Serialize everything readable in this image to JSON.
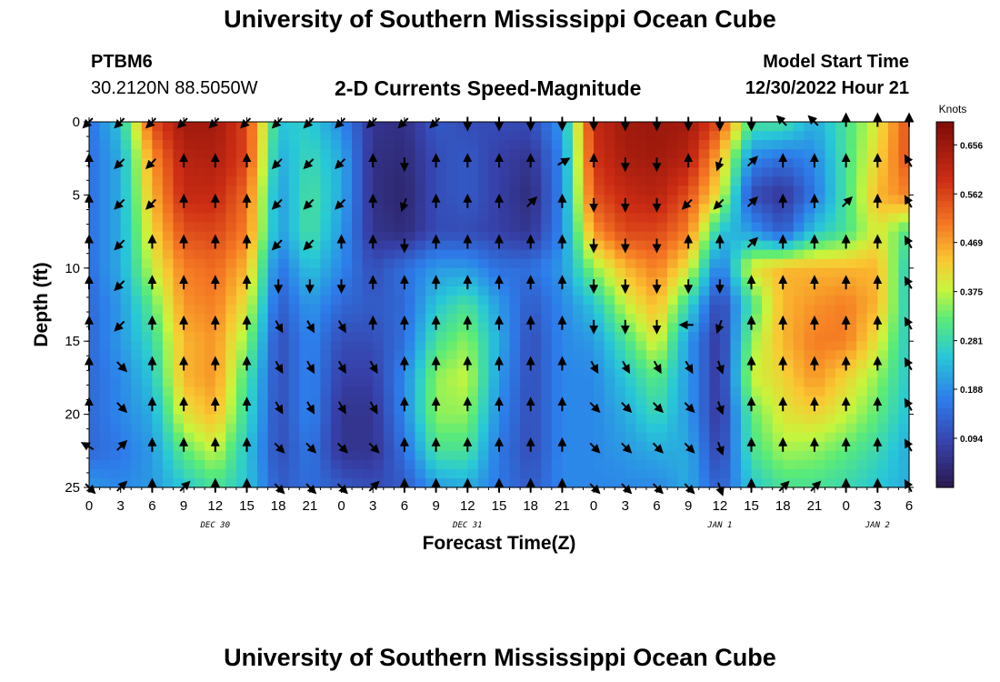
{
  "page": {
    "title": "University of Southern Mississippi Ocean Cube",
    "footer_title": "University of Southern Mississippi Ocean Cube",
    "station_id": "PTBM6",
    "coordinates": "30.2120N  88.5050W",
    "model_start_label": "Model Start Time",
    "model_start_value": "12/30/2022 Hour 21"
  },
  "chart_data": {
    "type": "heatmap",
    "title": "2-D Currents Speed-Magnitude",
    "xlabel": "Forecast Time(Z)",
    "ylabel": "Depth (ft)",
    "x_tick_labels": [
      "0",
      "3",
      "6",
      "9",
      "12",
      "15",
      "18",
      "21",
      "0",
      "3",
      "6",
      "9",
      "12",
      "15",
      "18",
      "21",
      "0",
      "3",
      "6",
      "9",
      "12",
      "15",
      "18",
      "21",
      "0",
      "3",
      "6"
    ],
    "date_labels": [
      {
        "label": "DEC 30",
        "tick_index": 4
      },
      {
        "label": "DEC 31",
        "tick_index": 12
      },
      {
        "label": "JAN 1",
        "tick_index": 20
      },
      {
        "label": "JAN 2",
        "tick_index": 25
      }
    ],
    "y_ticks": [
      0,
      5,
      10,
      15,
      20,
      25
    ],
    "ylim": [
      25,
      0
    ],
    "x_range_hours": [
      0,
      78
    ],
    "colorbar": {
      "unit_label": "Knots",
      "ticks": [
        "0.656",
        "0.562",
        "0.469",
        "0.375",
        "0.281",
        "0.188",
        "0.094"
      ],
      "range": [
        0.0,
        0.7
      ]
    },
    "depth_rows": [
      0,
      2.5,
      5,
      7.5,
      10,
      12.5,
      15,
      17.5,
      20,
      22.5,
      25
    ],
    "column_hours": [
      0,
      3,
      6,
      9,
      12,
      15,
      18,
      21,
      24,
      27,
      30,
      33,
      36,
      39,
      42,
      45,
      48,
      51,
      54,
      57,
      60,
      63,
      66,
      69,
      72,
      75,
      78
    ],
    "speed_knots": [
      [
        0.15,
        0.25,
        0.55,
        0.65,
        0.65,
        0.56,
        0.25,
        0.26,
        0.18,
        0.06,
        0.05,
        0.12,
        0.1,
        0.1,
        0.1,
        0.2,
        0.6,
        0.65,
        0.66,
        0.65,
        0.55,
        0.3,
        0.3,
        0.22,
        0.3,
        0.4,
        0.55
      ],
      [
        0.15,
        0.22,
        0.48,
        0.62,
        0.63,
        0.56,
        0.22,
        0.28,
        0.22,
        0.05,
        0.04,
        0.1,
        0.12,
        0.08,
        0.06,
        0.18,
        0.58,
        0.64,
        0.65,
        0.62,
        0.45,
        0.18,
        0.15,
        0.18,
        0.3,
        0.42,
        0.55
      ],
      [
        0.15,
        0.22,
        0.45,
        0.6,
        0.6,
        0.52,
        0.2,
        0.3,
        0.22,
        0.05,
        0.03,
        0.1,
        0.12,
        0.08,
        0.04,
        0.18,
        0.55,
        0.6,
        0.62,
        0.55,
        0.4,
        0.1,
        0.06,
        0.16,
        0.3,
        0.45,
        0.5
      ],
      [
        0.15,
        0.22,
        0.42,
        0.55,
        0.56,
        0.5,
        0.2,
        0.3,
        0.2,
        0.06,
        0.04,
        0.1,
        0.1,
        0.08,
        0.06,
        0.18,
        0.48,
        0.56,
        0.56,
        0.5,
        0.25,
        0.2,
        0.12,
        0.25,
        0.3,
        0.4,
        0.3
      ],
      [
        0.15,
        0.22,
        0.38,
        0.5,
        0.52,
        0.45,
        0.15,
        0.25,
        0.18,
        0.1,
        0.15,
        0.2,
        0.2,
        0.15,
        0.15,
        0.2,
        0.35,
        0.45,
        0.5,
        0.4,
        0.15,
        0.4,
        0.45,
        0.45,
        0.45,
        0.45,
        0.25
      ],
      [
        0.14,
        0.2,
        0.32,
        0.48,
        0.5,
        0.4,
        0.12,
        0.2,
        0.14,
        0.12,
        0.14,
        0.25,
        0.3,
        0.2,
        0.12,
        0.18,
        0.25,
        0.38,
        0.45,
        0.28,
        0.08,
        0.3,
        0.45,
        0.48,
        0.5,
        0.45,
        0.25
      ],
      [
        0.14,
        0.2,
        0.28,
        0.45,
        0.48,
        0.35,
        0.1,
        0.18,
        0.1,
        0.1,
        0.15,
        0.3,
        0.35,
        0.22,
        0.1,
        0.18,
        0.2,
        0.3,
        0.4,
        0.2,
        0.06,
        0.35,
        0.45,
        0.5,
        0.5,
        0.4,
        0.25
      ],
      [
        0.14,
        0.18,
        0.25,
        0.45,
        0.48,
        0.3,
        0.1,
        0.18,
        0.08,
        0.08,
        0.18,
        0.35,
        0.38,
        0.2,
        0.1,
        0.18,
        0.18,
        0.25,
        0.32,
        0.2,
        0.06,
        0.38,
        0.42,
        0.48,
        0.42,
        0.35,
        0.25
      ],
      [
        0.14,
        0.18,
        0.22,
        0.4,
        0.45,
        0.28,
        0.1,
        0.18,
        0.06,
        0.06,
        0.18,
        0.35,
        0.35,
        0.18,
        0.1,
        0.18,
        0.18,
        0.22,
        0.28,
        0.2,
        0.06,
        0.32,
        0.4,
        0.42,
        0.38,
        0.32,
        0.24
      ],
      [
        0.14,
        0.16,
        0.2,
        0.32,
        0.38,
        0.25,
        0.1,
        0.16,
        0.06,
        0.06,
        0.15,
        0.3,
        0.3,
        0.16,
        0.1,
        0.18,
        0.18,
        0.2,
        0.22,
        0.22,
        0.08,
        0.3,
        0.36,
        0.35,
        0.32,
        0.28,
        0.22
      ],
      [
        0.2,
        0.18,
        0.2,
        0.25,
        0.3,
        0.25,
        0.12,
        0.15,
        0.12,
        0.1,
        0.12,
        0.2,
        0.22,
        0.16,
        0.12,
        0.18,
        0.18,
        0.18,
        0.18,
        0.22,
        0.12,
        0.25,
        0.3,
        0.3,
        0.28,
        0.25,
        0.22
      ]
    ],
    "current_direction_deg": [
      [
        225,
        225,
        225,
        225,
        225,
        225,
        225,
        225,
        225,
        225,
        225,
        225,
        180,
        180,
        180,
        180,
        180,
        180,
        180,
        180,
        180,
        180,
        315,
        315,
        0,
        0,
        0
      ],
      [
        0,
        225,
        225,
        0,
        0,
        0,
        225,
        225,
        225,
        0,
        180,
        0,
        0,
        0,
        0,
        60,
        0,
        180,
        180,
        0,
        200,
        45,
        0,
        0,
        0,
        0,
        330
      ],
      [
        0,
        225,
        225,
        0,
        0,
        0,
        225,
        225,
        225,
        0,
        200,
        0,
        0,
        0,
        45,
        0,
        180,
        180,
        180,
        225,
        225,
        45,
        0,
        0,
        45,
        0,
        330
      ],
      [
        0,
        225,
        0,
        0,
        0,
        0,
        225,
        225,
        0,
        0,
        180,
        0,
        0,
        0,
        0,
        0,
        180,
        180,
        180,
        0,
        0,
        45,
        0,
        0,
        0,
        0,
        330
      ],
      [
        0,
        225,
        0,
        0,
        0,
        0,
        180,
        180,
        180,
        0,
        0,
        0,
        0,
        0,
        0,
        0,
        180,
        180,
        180,
        180,
        180,
        0,
        0,
        0,
        0,
        0,
        330
      ],
      [
        0,
        225,
        0,
        0,
        0,
        0,
        150,
        150,
        150,
        0,
        0,
        0,
        0,
        0,
        0,
        0,
        180,
        180,
        180,
        270,
        200,
        0,
        0,
        0,
        0,
        0,
        330
      ],
      [
        0,
        135,
        0,
        0,
        0,
        0,
        150,
        150,
        150,
        150,
        0,
        0,
        0,
        0,
        0,
        0,
        150,
        150,
        150,
        150,
        160,
        0,
        0,
        0,
        0,
        0,
        330
      ],
      [
        0,
        135,
        0,
        0,
        0,
        0,
        150,
        150,
        150,
        150,
        0,
        0,
        0,
        0,
        0,
        0,
        135,
        135,
        135,
        135,
        160,
        0,
        0,
        0,
        0,
        0,
        330
      ],
      [
        300,
        45,
        0,
        0,
        0,
        0,
        135,
        135,
        135,
        135,
        0,
        0,
        0,
        0,
        0,
        0,
        135,
        135,
        135,
        135,
        160,
        0,
        0,
        0,
        0,
        0,
        330
      ],
      [
        135,
        45,
        0,
        45,
        0,
        0,
        135,
        135,
        135,
        45,
        0,
        0,
        0,
        0,
        0,
        0,
        135,
        135,
        135,
        135,
        160,
        0,
        45,
        45,
        0,
        0,
        330
      ]
    ]
  }
}
